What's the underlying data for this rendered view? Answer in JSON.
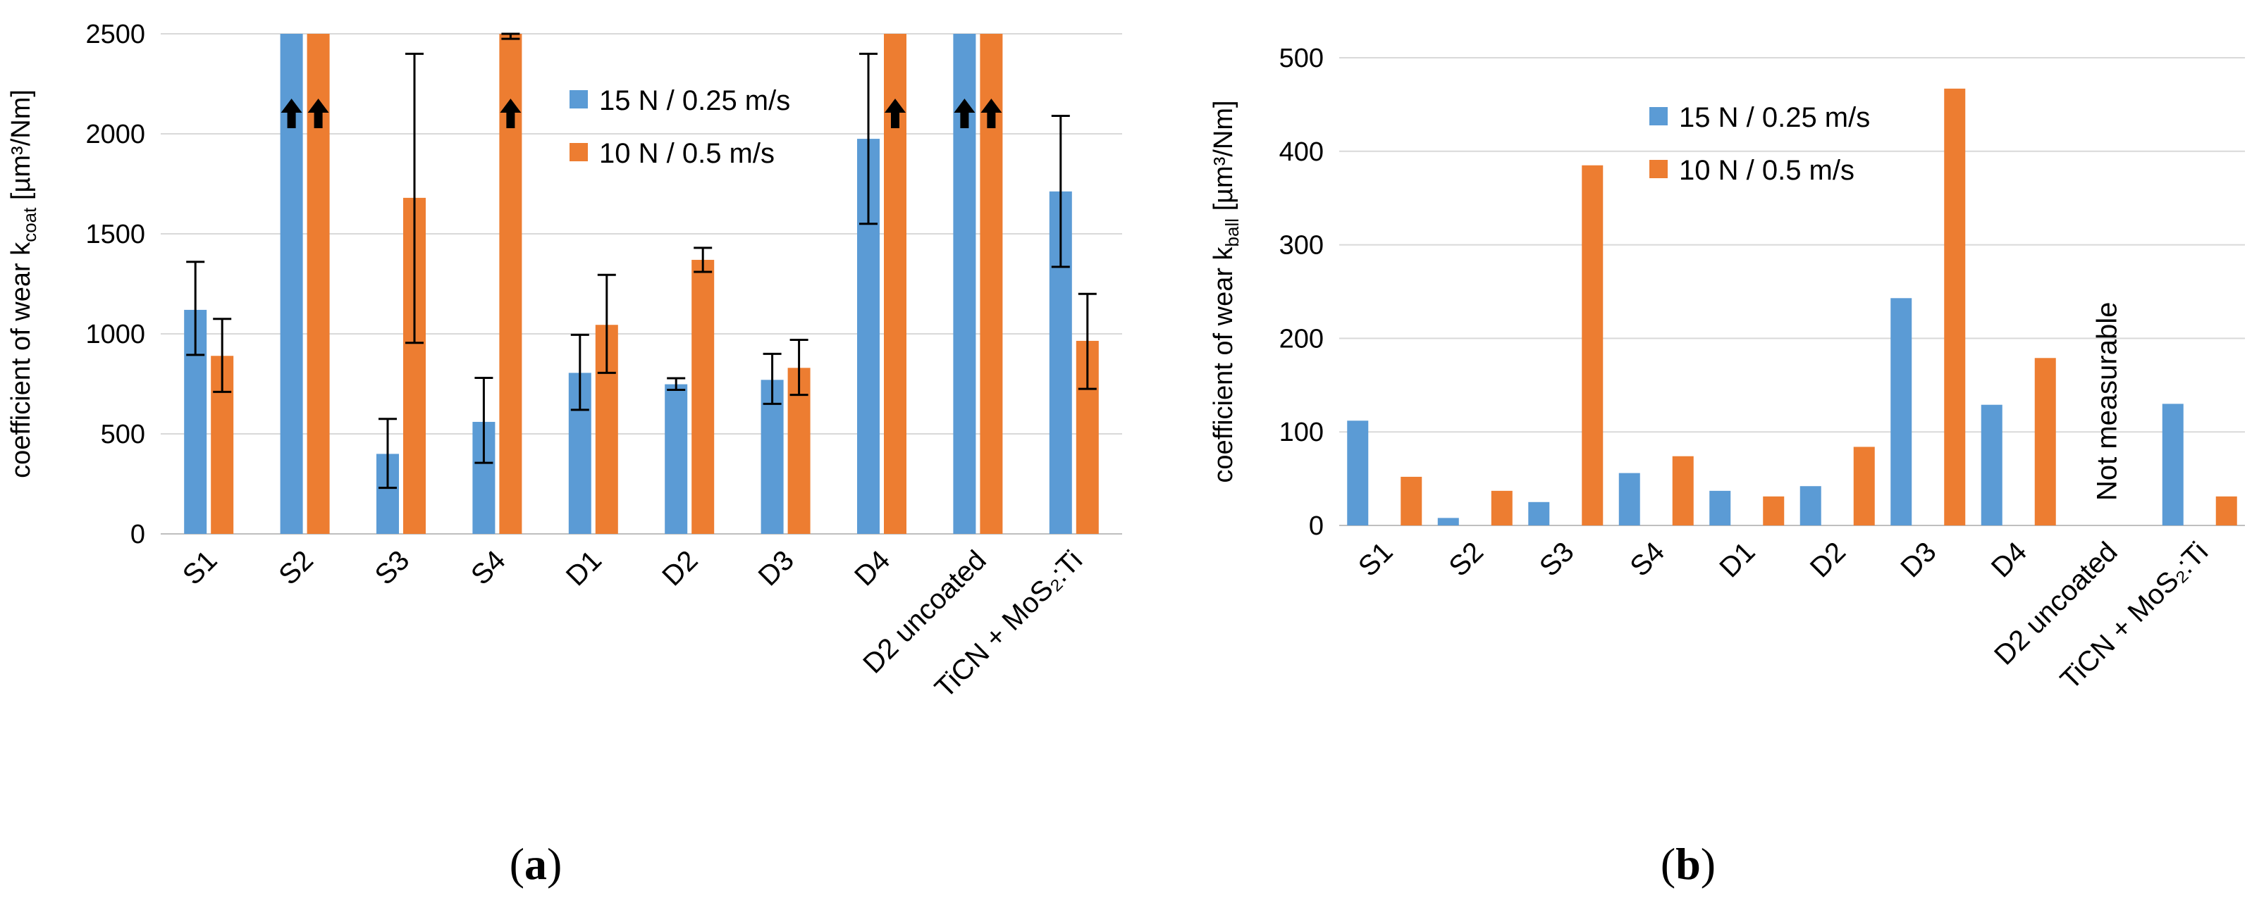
{
  "colors": {
    "series1": "#5B9BD5",
    "series2": "#ED7D31",
    "grid": "#D9D9D9",
    "axis": "#BFBFBF",
    "text": "#000000"
  },
  "chart_data": [
    {
      "type": "bar",
      "panel": "a",
      "ylabel": {
        "main": "coefficient of wear k",
        "sub": "coat",
        "unit": " [µm³/Nm]"
      },
      "ylim": [
        0,
        2500
      ],
      "yticks": [
        0,
        500,
        1000,
        1500,
        2000,
        2500
      ],
      "ytick_labels": [
        "0",
        "500",
        "1000",
        "1500",
        "2000",
        "2500"
      ],
      "grid": true,
      "legend_position": "top-middle",
      "categories": [
        "S1",
        "S2",
        "S3",
        "S4",
        "D1",
        "D2",
        "D3",
        "D4",
        "D2 uncoated",
        "TiCN + MoS₂:Ti"
      ],
      "series": [
        {
          "name": "15 N / 0.25 m/s",
          "values": [
            1120,
            2500,
            400,
            560,
            805,
            748,
            770,
            1975,
            2500,
            1712
          ],
          "err_low": [
            895,
            null,
            230,
            355,
            620,
            720,
            650,
            1550,
            null,
            1335
          ],
          "err_high": [
            1360,
            null,
            575,
            780,
            995,
            778,
            900,
            2400,
            null,
            2090
          ],
          "exceeds_axis": [
            false,
            true,
            false,
            false,
            false,
            false,
            false,
            false,
            true,
            false
          ]
        },
        {
          "name": "10 N / 0.5 m/s",
          "values": [
            890,
            2500,
            1680,
            2500,
            1045,
            1370,
            830,
            2500,
            2500,
            965
          ],
          "err_low": [
            710,
            null,
            955,
            2475,
            805,
            1310,
            695,
            null,
            null,
            725
          ],
          "err_high": [
            1075,
            null,
            2400,
            2500,
            1295,
            1430,
            970,
            null,
            null,
            1200
          ],
          "exceeds_axis": [
            false,
            true,
            false,
            true,
            false,
            false,
            false,
            true,
            true,
            false
          ]
        }
      ]
    },
    {
      "type": "bar",
      "panel": "b",
      "ylabel": {
        "main": "coefficient of wear k",
        "sub": "ball",
        "unit": " [µm³/Nm]"
      },
      "ylim": [
        0,
        500
      ],
      "yticks": [
        0,
        100,
        200,
        300,
        400,
        500
      ],
      "ytick_labels": [
        "0",
        "100",
        "200",
        "300",
        "400",
        "500"
      ],
      "grid": true,
      "legend_position": "top-left",
      "categories": [
        "S1",
        "S2",
        "S3",
        "S4",
        "D1",
        "D2",
        "D3",
        "D4",
        "D2 uncoated",
        "TiCN + MoS₂:Ti"
      ],
      "series": [
        {
          "name": "15 N / 0.25 m/s",
          "values": [
            112,
            8,
            25,
            56,
            37,
            42,
            243,
            129,
            null,
            130
          ]
        },
        {
          "name": "10 N / 0.5 m/s",
          "values": [
            52,
            37,
            385,
            74,
            31,
            84,
            467,
            179,
            null,
            31
          ]
        }
      ],
      "annotation": "Not measurable"
    }
  ]
}
